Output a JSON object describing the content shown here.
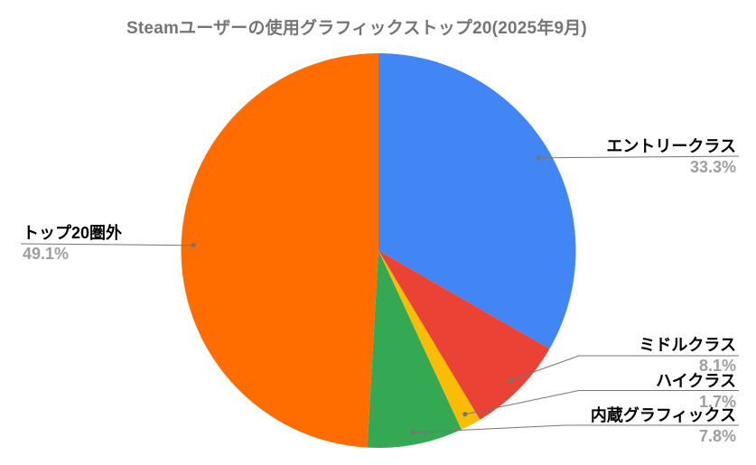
{
  "chart_data": {
    "type": "pie",
    "title": "Steamユーザーの使用グラフィックストップ20(2025年9月)",
    "unit": "%",
    "total": 100,
    "direction": "clockwise",
    "start_angle_deg": 0,
    "legend_position": "labeled-callouts",
    "slices": [
      {
        "key": "entry-class",
        "label": "エントリークラス",
        "value": 33.3,
        "percent_label": "33.3%",
        "color": "#4285F4"
      },
      {
        "key": "middle-class",
        "label": "ミドルクラス",
        "value": 8.1,
        "percent_label": "8.1%",
        "color": "#EA4335"
      },
      {
        "key": "high-class",
        "label": "ハイクラス",
        "value": 1.7,
        "percent_label": "1.7%",
        "color": "#FBBC04"
      },
      {
        "key": "integrated-graphics",
        "label": "内蔵グラフィックス",
        "value": 7.8,
        "percent_label": "7.8%",
        "color": "#34A853"
      },
      {
        "key": "outside-top20",
        "label": "トップ20圏外",
        "value": 49.1,
        "percent_label": "49.1%",
        "color": "#FF6D01"
      }
    ]
  },
  "styles": {
    "background": "#ffffff",
    "title_color": "#757575",
    "label_color": "#000000",
    "percent_color": "#9e9e9e",
    "leader_color": "#757575"
  }
}
